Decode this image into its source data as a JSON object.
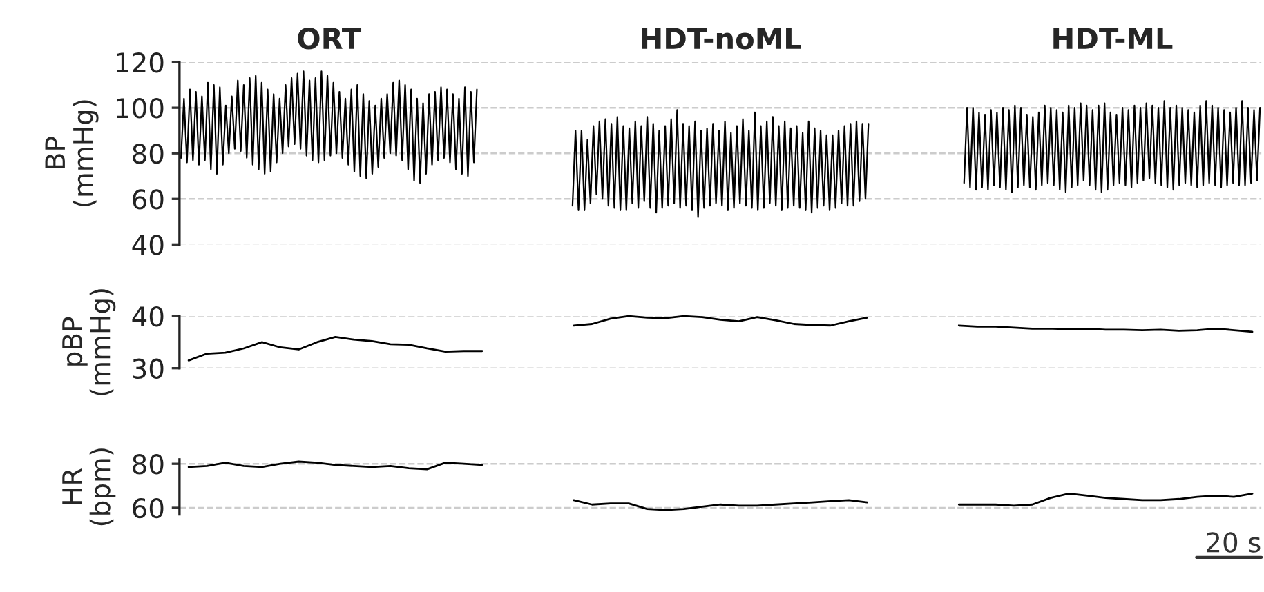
{
  "chart_data": [
    {
      "type": "line",
      "ylabel": "BP\n(mmHg)",
      "ylim": [
        40,
        120
      ],
      "yticks": [
        40,
        60,
        80,
        100,
        120
      ],
      "grid": "y",
      "categories": [
        null,
        null,
        null,
        null,
        null,
        null,
        null,
        null,
        null,
        null,
        null,
        null,
        null,
        null,
        null,
        null,
        null,
        null,
        null,
        null,
        null,
        null,
        null,
        null,
        null,
        null,
        null,
        null,
        null,
        null,
        null,
        null,
        null,
        null,
        null,
        null,
        null,
        null,
        null,
        null,
        null,
        null,
        null,
        null,
        null,
        null,
        null,
        null,
        null,
        null,
        null,
        null,
        null,
        null,
        null,
        null,
        null,
        null,
        null,
        null,
        null,
        null,
        null,
        null,
        null,
        null,
        null,
        null,
        null,
        null,
        null,
        null,
        null,
        null,
        null,
        null,
        null,
        null,
        null,
        null,
        null,
        null,
        null,
        null,
        null,
        null,
        null,
        null,
        null,
        null,
        null,
        null,
        null,
        null,
        null,
        null,
        null,
        null,
        null,
        null,
        null,
        null,
        null,
        null,
        null,
        null,
        null,
        null,
        null,
        null,
        null,
        null,
        null,
        null,
        null,
        null,
        null,
        null,
        null,
        null,
        null,
        null,
        null,
        null,
        null,
        null,
        null,
        null,
        null,
        null,
        null,
        null,
        null,
        null,
        null,
        null,
        null,
        null,
        null,
        null,
        null,
        null,
        null,
        null,
        null,
        null,
        null,
        null,
        null,
        null,
        null,
        null,
        null,
        null,
        null,
        null,
        null,
        null,
        null,
        null,
        null,
        null,
        null,
        null,
        null,
        null,
        null,
        null,
        null,
        null,
        null,
        null,
        null,
        null,
        null,
        null,
        null,
        null,
        null,
        null,
        null,
        null,
        null,
        null,
        null,
        null,
        null,
        null,
        null,
        null,
        null,
        null,
        null,
        null,
        null,
        null,
        null,
        null,
        null,
        null,
        null,
        null,
        null,
        null,
        null,
        null,
        null,
        null,
        null,
        null,
        null,
        null,
        null,
        null,
        null,
        null,
        null,
        null,
        null,
        null,
        null,
        null,
        null,
        null,
        null,
        null,
        null,
        null,
        null,
        null,
        null,
        null,
        null,
        null,
        null,
        null,
        null,
        null,
        null,
        null,
        null,
        null,
        null,
        null,
        null,
        null,
        null,
        null,
        null,
        null,
        null,
        null,
        null,
        null,
        null,
        null,
        null,
        null,
        null,
        null,
        null,
        null,
        null,
        null,
        null,
        null,
        null,
        null,
        null,
        null,
        null,
        null,
        null,
        null,
        null,
        null,
        null,
        null,
        null,
        null,
        null,
        null,
        null,
        null,
        null,
        null,
        null,
        null,
        null,
        null,
        null,
        null,
        null,
        null,
        null,
        null,
        null,
        null,
        null,
        null,
        null,
        null,
        null,
        null,
        null,
        null,
        null,
        null,
        null,
        null,
        null,
        null,
        null,
        null,
        null,
        null,
        null,
        null,
        null,
        null,
        null,
        null,
        null,
        null,
        null,
        null,
        null,
        null,
        null,
        null,
        null,
        null,
        null,
        null,
        null,
        null,
        null,
        null,
        null,
        null,
        null,
        null,
        null,
        null,
        null,
        null,
        null,
        null,
        null,
        null,
        null,
        null,
        null,
        null,
        null,
        null,
        null,
        null,
        null,
        null,
        null,
        null
      ],
      "series": [
        {
          "name": "ORT",
          "color": "#000000",
          "values": [
            78,
            104,
            76,
            108,
            77,
            107,
            75,
            105,
            77,
            111,
            73,
            110,
            71,
            109,
            75,
            101,
            80,
            105,
            82,
            112,
            81,
            110,
            78,
            113,
            75,
            114,
            73,
            111,
            71,
            108,
            72,
            106,
            76,
            104,
            80,
            110,
            83,
            113,
            84,
            115,
            82,
            116,
            79,
            112,
            77,
            113,
            76,
            116,
            77,
            114,
            79,
            111,
            80,
            107,
            78,
            104,
            75,
            108,
            72,
            110,
            70,
            106,
            69,
            103,
            71,
            101,
            74,
            104,
            78,
            106,
            80,
            111,
            79,
            112,
            77,
            110,
            73,
            108,
            68,
            104,
            67,
            102,
            71,
            106,
            75,
            107,
            77,
            109,
            78,
            108,
            76,
            106,
            73,
            104,
            71,
            109,
            70,
            107,
            76,
            108,
            null,
            null,
            null,
            null,
            null,
            null,
            null,
            null,
            null,
            null,
            null,
            null,
            null,
            null,
            null,
            null,
            null,
            null,
            null,
            null,
            null,
            null,
            null,
            null,
            null,
            null,
            null,
            null,
            null,
            null,
            null,
            null,
            null,
            null,
            null,
            null,
            null,
            null,
            null,
            null,
            null,
            null,
            null,
            null,
            null,
            null,
            null,
            null,
            null,
            null,
            null,
            null,
            null,
            null,
            null,
            null,
            null,
            null,
            null,
            null,
            null,
            null,
            null,
            null,
            null,
            null,
            null,
            null,
            null,
            null,
            null,
            null,
            null,
            null,
            null,
            null,
            null,
            null,
            null,
            null,
            null,
            null,
            null,
            null,
            null,
            null,
            null,
            null,
            null,
            null,
            null,
            null,
            null,
            null,
            null,
            null,
            null,
            null,
            null,
            null,
            null,
            null,
            null,
            null,
            null,
            null,
            null,
            null,
            null,
            null,
            null,
            null,
            null,
            null,
            null,
            null,
            null,
            null,
            null,
            null,
            null,
            null,
            null,
            null,
            null,
            null,
            null,
            null,
            null,
            null,
            null,
            null,
            null,
            null,
            null,
            null,
            null,
            null,
            null,
            null,
            null,
            null,
            null,
            null,
            null,
            null,
            null,
            null,
            null,
            null,
            null,
            null,
            null,
            null,
            null,
            null,
            null,
            null,
            null,
            null,
            null,
            null,
            null,
            null,
            null,
            null,
            null,
            null,
            null,
            null,
            null,
            null,
            null,
            null,
            null,
            null,
            null,
            null,
            null,
            null,
            null,
            null,
            null,
            null,
            null,
            null,
            null,
            null,
            null,
            null,
            null,
            null,
            null,
            null,
            null,
            null,
            null,
            null,
            null,
            null,
            null,
            null,
            null,
            null,
            null,
            null,
            null,
            null,
            null,
            null,
            null,
            null,
            null,
            null,
            null,
            null,
            null,
            null,
            null,
            null,
            null,
            null,
            null,
            null,
            null,
            null,
            null,
            null,
            null,
            null,
            null,
            null,
            null,
            null,
            null,
            null,
            null,
            null,
            null,
            null,
            null,
            null,
            null,
            null,
            null,
            null,
            null,
            null,
            null,
            null,
            null,
            null,
            null,
            null,
            null,
            null,
            null,
            null,
            null,
            null,
            null,
            null
          ]
        },
        {
          "name": "HDT-noML",
          "color": "#000000",
          "values": [
            null,
            null,
            null,
            null,
            null,
            null,
            null,
            null,
            null,
            null,
            null,
            null,
            null,
            null,
            null,
            null,
            null,
            null,
            null,
            null,
            null,
            null,
            null,
            null,
            null,
            null,
            null,
            null,
            null,
            null,
            null,
            null,
            null,
            null,
            null,
            null,
            null,
            null,
            null,
            null,
            null,
            null,
            null,
            null,
            null,
            null,
            null,
            null,
            null,
            null,
            null,
            null,
            null,
            null,
            null,
            null,
            null,
            null,
            null,
            null,
            null,
            null,
            null,
            null,
            null,
            null,
            null,
            null,
            null,
            null,
            null,
            null,
            null,
            null,
            null,
            null,
            null,
            null,
            null,
            null,
            null,
            null,
            null,
            null,
            null,
            null,
            null,
            null,
            null,
            null,
            null,
            null,
            null,
            null,
            null,
            null,
            null,
            null,
            null,
            null,
            null,
            null,
            null,
            null,
            null,
            null,
            null,
            null,
            null,
            null,
            null,
            null,
            null,
            null,
            null,
            null,
            null,
            null,
            null,
            null,
            null,
            null,
            null,
            null,
            null,
            null,
            null,
            null,
            null,
            null,
            null,
            57,
            90,
            55,
            90,
            55,
            86,
            58,
            92,
            62,
            94,
            60,
            95,
            57,
            93,
            56,
            96,
            55,
            92,
            55,
            91,
            58,
            94,
            56,
            92,
            59,
            96,
            56,
            93,
            54,
            90,
            56,
            92,
            57,
            95,
            58,
            99,
            56,
            93,
            57,
            92,
            55,
            94,
            52,
            90,
            56,
            91,
            57,
            93,
            58,
            90,
            57,
            94,
            55,
            89,
            56,
            92,
            58,
            95,
            57,
            90,
            56,
            98,
            55,
            92,
            56,
            94,
            58,
            96,
            57,
            92,
            55,
            94,
            56,
            91,
            57,
            92,
            56,
            89,
            55,
            94,
            54,
            91,
            56,
            90,
            57,
            88,
            55,
            88,
            56,
            90,
            58,
            92,
            57,
            93,
            57,
            94,
            59,
            93,
            60,
            93,
            null,
            null,
            null,
            null,
            null,
            null,
            null,
            null,
            null,
            null,
            null,
            null,
            null,
            null,
            null,
            null,
            null,
            null,
            null,
            null,
            null,
            null,
            null,
            null,
            null,
            null,
            null,
            null,
            null,
            null,
            null,
            null,
            null,
            null,
            null,
            null,
            null,
            null,
            null,
            null,
            null,
            null,
            null,
            null,
            null,
            null,
            null,
            null,
            null,
            null,
            null,
            null,
            null,
            null,
            null,
            null,
            null,
            null,
            null,
            null,
            null,
            null,
            null,
            null,
            null,
            null,
            null,
            null,
            null,
            null,
            null,
            null,
            null,
            null,
            null,
            null,
            null,
            null,
            null,
            null,
            null,
            null,
            null,
            null,
            null,
            null,
            null,
            null,
            null,
            null,
            null,
            null,
            null,
            null,
            null,
            null,
            null,
            null,
            null,
            null,
            null,
            null,
            null,
            null,
            null,
            null,
            null,
            null,
            null,
            null,
            null,
            null,
            null,
            null,
            null,
            null,
            null,
            null,
            null,
            null,
            null,
            null,
            null,
            null,
            null,
            null,
            null,
            null,
            null,
            null,
            null
          ]
        },
        {
          "name": "HDT-ML",
          "color": "#000000",
          "values": [
            null,
            null,
            null,
            null,
            null,
            null,
            null,
            null,
            null,
            null,
            null,
            null,
            null,
            null,
            null,
            null,
            null,
            null,
            null,
            null,
            null,
            null,
            null,
            null,
            null,
            null,
            null,
            null,
            null,
            null,
            null,
            null,
            null,
            null,
            null,
            null,
            null,
            null,
            null,
            null,
            null,
            null,
            null,
            null,
            null,
            null,
            null,
            null,
            null,
            null,
            null,
            null,
            null,
            null,
            null,
            null,
            null,
            null,
            null,
            null,
            null,
            null,
            null,
            null,
            null,
            null,
            null,
            null,
            null,
            null,
            null,
            null,
            null,
            null,
            null,
            null,
            null,
            null,
            null,
            null,
            null,
            null,
            null,
            null,
            null,
            null,
            null,
            null,
            null,
            null,
            null,
            null,
            null,
            null,
            null,
            null,
            null,
            null,
            null,
            null,
            null,
            null,
            null,
            null,
            null,
            null,
            null,
            null,
            null,
            null,
            null,
            null,
            null,
            null,
            null,
            null,
            null,
            null,
            null,
            null,
            null,
            null,
            null,
            null,
            null,
            null,
            null,
            null,
            null,
            null,
            null,
            null,
            null,
            null,
            null,
            null,
            null,
            null,
            null,
            null,
            null,
            null,
            null,
            null,
            null,
            null,
            null,
            null,
            null,
            null,
            null,
            null,
            null,
            null,
            null,
            null,
            null,
            null,
            null,
            null,
            null,
            null,
            null,
            null,
            null,
            null,
            null,
            null,
            null,
            null,
            null,
            null,
            null,
            null,
            null,
            null,
            null,
            null,
            null,
            null,
            null,
            null,
            null,
            null,
            null,
            null,
            null,
            null,
            null,
            null,
            null,
            null,
            null,
            null,
            null,
            null,
            null,
            null,
            null,
            null,
            null,
            null,
            null,
            null,
            null,
            null,
            null,
            null,
            null,
            null,
            null,
            null,
            null,
            null,
            null,
            null,
            null,
            null,
            null,
            null,
            null,
            null,
            null,
            null,
            null,
            null,
            null,
            null,
            null,
            null,
            null,
            null,
            null,
            null,
            null,
            null,
            null,
            null,
            null,
            null,
            null,
            null,
            null,
            null,
            null,
            null,
            null,
            null,
            null,
            null,
            null,
            null,
            null,
            null,
            null,
            null,
            null,
            null,
            null,
            null,
            null,
            null,
            67,
            100,
            65,
            100,
            64,
            98,
            65,
            97,
            64,
            99,
            66,
            98,
            65,
            100,
            64,
            99,
            63,
            101,
            65,
            100,
            66,
            97,
            65,
            96,
            64,
            98,
            66,
            101,
            67,
            100,
            66,
            99,
            64,
            98,
            63,
            101,
            65,
            100,
            66,
            102,
            68,
            101,
            66,
            99,
            64,
            101,
            63,
            102,
            64,
            98,
            66,
            97,
            67,
            100,
            66,
            99,
            65,
            101,
            67,
            100,
            68,
            102,
            69,
            101,
            67,
            100,
            66,
            103,
            65,
            100,
            64,
            101,
            66,
            100,
            67,
            99,
            66,
            98,
            65,
            101,
            66,
            103,
            67,
            101,
            66,
            100,
            65,
            99,
            66,
            98,
            67,
            100,
            66,
            103,
            66,
            100,
            67,
            99,
            68,
            100
          ]
        }
      ]
    },
    {
      "type": "line",
      "ylabel": "pBP\n(mmHg)",
      "ylim": [
        30,
        40
      ],
      "yticks": [
        30,
        40
      ],
      "grid": "y",
      "categories": [
        null,
        null,
        null,
        null,
        null,
        null,
        null,
        null,
        null,
        null,
        null,
        null,
        null,
        null,
        null,
        null,
        null,
        null,
        null,
        null,
        null,
        null,
        null,
        null,
        null,
        null,
        null,
        null,
        null,
        null,
        null,
        null,
        null,
        null,
        null,
        null,
        null,
        null,
        null,
        null,
        null,
        null,
        null,
        null,
        null,
        null,
        null,
        null,
        null,
        null,
        null,
        null,
        null,
        null,
        null,
        null,
        null,
        null,
        null
      ],
      "series": [
        {
          "color": "#000000",
          "values": [
            31.5,
            32.8,
            33,
            33.8,
            35,
            34,
            33.6,
            35,
            36,
            35.5,
            35.2,
            34.6,
            34.5,
            33.8,
            33.2,
            33.3,
            33.3,
            null,
            null,
            null,
            null,
            null,
            null,
            null,
            null,
            null,
            null,
            null,
            null,
            null,
            null,
            null,
            null,
            null,
            null,
            null,
            null,
            null,
            null,
            null,
            null,
            null,
            null,
            null,
            null,
            null,
            null,
            null,
            null,
            null,
            null,
            null,
            null,
            null,
            null,
            null,
            null,
            null,
            null
          ]
        },
        {
          "color": "#000000",
          "values": [
            null,
            null,
            null,
            null,
            null,
            null,
            null,
            null,
            null,
            null,
            null,
            null,
            null,
            null,
            null,
            null,
            null,
            null,
            null,
            null,
            null,
            38.2,
            38.5,
            39.5,
            40,
            39.7,
            39.6,
            40,
            39.8,
            39.3,
            39,
            39.8,
            39.2,
            38.5,
            38.3,
            38.2,
            39,
            39.7,
            null,
            null,
            null,
            null,
            null,
            null,
            null,
            null,
            null,
            null,
            null,
            null,
            null,
            null,
            null,
            null,
            null,
            null,
            null,
            null,
            null
          ]
        },
        {
          "color": "#000000",
          "values": [
            null,
            null,
            null,
            null,
            null,
            null,
            null,
            null,
            null,
            null,
            null,
            null,
            null,
            null,
            null,
            null,
            null,
            null,
            null,
            null,
            null,
            null,
            null,
            null,
            null,
            null,
            null,
            null,
            null,
            null,
            null,
            null,
            null,
            null,
            null,
            null,
            null,
            null,
            null,
            null,
            null,
            null,
            38.2,
            38,
            38,
            37.8,
            37.6,
            37.6,
            37.5,
            37.6,
            37.4,
            37.4,
            37.3,
            37.4,
            37.2,
            37.3,
            37.6,
            37.3,
            37
          ]
        }
      ]
    },
    {
      "type": "line",
      "ylabel": "HR\n(bpm)",
      "ylim": [
        57,
        82
      ],
      "yticks": [
        60,
        80
      ],
      "grid": "y",
      "annotations": [
        "20 s"
      ],
      "categories": [
        null,
        null,
        null,
        null,
        null,
        null,
        null,
        null,
        null,
        null,
        null,
        null,
        null,
        null,
        null,
        null,
        null,
        null,
        null,
        null,
        null,
        null,
        null,
        null,
        null,
        null,
        null,
        null,
        null,
        null,
        null,
        null,
        null,
        null,
        null,
        null,
        null,
        null,
        null,
        null,
        null,
        null,
        null,
        null,
        null,
        null,
        null,
        null,
        null,
        null,
        null,
        null,
        null,
        null,
        null,
        null,
        null,
        null,
        null
      ],
      "series": [
        {
          "color": "#000000",
          "values": [
            78.5,
            79,
            80.5,
            79,
            78.5,
            80,
            81,
            80.5,
            79.5,
            79,
            78.5,
            79,
            78,
            77.5,
            80.5,
            80,
            79.5,
            null,
            null,
            null,
            null,
            null,
            null,
            null,
            null,
            null,
            null,
            null,
            null,
            null,
            null,
            null,
            null,
            null,
            null,
            null,
            null,
            null,
            null,
            null,
            null,
            null,
            null,
            null,
            null,
            null,
            null,
            null,
            null,
            null,
            null,
            null,
            null,
            null,
            null,
            null,
            null,
            null,
            null
          ]
        },
        {
          "color": "#000000",
          "values": [
            null,
            null,
            null,
            null,
            null,
            null,
            null,
            null,
            null,
            null,
            null,
            null,
            null,
            null,
            null,
            null,
            null,
            null,
            null,
            null,
            null,
            63.5,
            61.5,
            62,
            62,
            59.5,
            59,
            59.5,
            60.5,
            61.5,
            61,
            61,
            61.5,
            62,
            62.5,
            63,
            63.5,
            62.5,
            null,
            null,
            null,
            null,
            null,
            null,
            null,
            null,
            null,
            null,
            null,
            null,
            null,
            null,
            null,
            null,
            null,
            null,
            null,
            null,
            null
          ]
        },
        {
          "color": "#000000",
          "values": [
            null,
            null,
            null,
            null,
            null,
            null,
            null,
            null,
            null,
            null,
            null,
            null,
            null,
            null,
            null,
            null,
            null,
            null,
            null,
            null,
            null,
            null,
            null,
            null,
            null,
            null,
            null,
            null,
            null,
            null,
            null,
            null,
            null,
            null,
            null,
            null,
            null,
            null,
            null,
            null,
            null,
            null,
            61.5,
            61.5,
            61.5,
            61,
            61.5,
            64.5,
            66.5,
            65.5,
            64.5,
            64,
            63.5,
            63.5,
            64,
            65,
            65.5,
            65,
            66.5
          ]
        }
      ]
    }
  ]
}
